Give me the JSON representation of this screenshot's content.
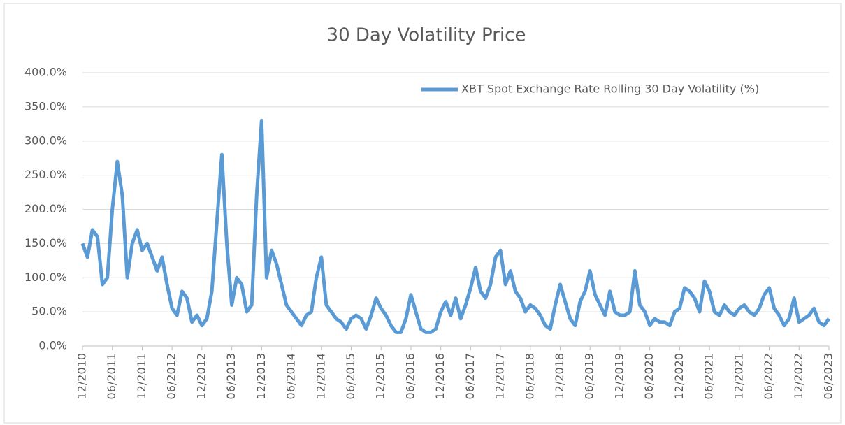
{
  "chart_data": {
    "type": "line",
    "title": "30 Day Volatility Price",
    "categories": [
      "12/2010",
      null,
      null,
      null,
      null,
      null,
      "06/2011",
      null,
      null,
      null,
      null,
      null,
      "12/2011",
      null,
      null,
      null,
      null,
      null,
      "06/2012",
      null,
      null,
      null,
      null,
      null,
      "12/2012",
      null,
      null,
      null,
      null,
      null,
      "06/2013",
      null,
      null,
      null,
      null,
      null,
      "12/2013",
      null,
      null,
      null,
      null,
      null,
      "06/2014",
      null,
      null,
      null,
      null,
      null,
      "12/2014",
      null,
      null,
      null,
      null,
      null,
      "06/2015",
      null,
      null,
      null,
      null,
      null,
      "12/2015",
      null,
      null,
      null,
      null,
      null,
      "06/2016",
      null,
      null,
      null,
      null,
      null,
      "12/2016",
      null,
      null,
      null,
      null,
      null,
      "06/2017",
      null,
      null,
      null,
      null,
      null,
      "12/2017",
      null,
      null,
      null,
      null,
      null,
      "06/2018",
      null,
      null,
      null,
      null,
      null,
      "12/2018",
      null,
      null,
      null,
      null,
      null,
      "06/2019",
      null,
      null,
      null,
      null,
      null,
      "12/2019",
      null,
      null,
      null,
      null,
      null,
      "06/2020",
      null,
      null,
      null,
      null,
      null,
      "12/2020",
      null,
      null,
      null,
      null,
      null,
      "06/2021",
      null,
      null,
      null,
      null,
      null,
      "12/2021",
      null,
      null,
      null,
      null,
      null,
      "06/2022",
      null,
      null,
      null,
      null,
      null,
      "12/2022",
      null,
      null,
      null,
      null,
      null,
      "06/2023"
    ],
    "series": [
      {
        "name": "XBT Spot Exchange Rate Rolling 30 Day Volatility (%)",
        "color": "#5b9bd5",
        "values": [
          150,
          130,
          170,
          160,
          90,
          100,
          200,
          270,
          220,
          100,
          150,
          170,
          140,
          150,
          130,
          110,
          130,
          90,
          55,
          45,
          80,
          70,
          35,
          45,
          30,
          40,
          80,
          180,
          280,
          150,
          60,
          100,
          90,
          50,
          60,
          220,
          330,
          100,
          140,
          120,
          90,
          60,
          50,
          40,
          30,
          45,
          50,
          100,
          130,
          60,
          50,
          40,
          35,
          25,
          40,
          45,
          40,
          25,
          45,
          70,
          55,
          45,
          30,
          20,
          20,
          40,
          75,
          50,
          25,
          20,
          20,
          25,
          50,
          65,
          45,
          70,
          40,
          60,
          85,
          115,
          80,
          70,
          90,
          130,
          140,
          90,
          110,
          80,
          70,
          50,
          60,
          55,
          45,
          30,
          25,
          60,
          90,
          65,
          40,
          30,
          65,
          80,
          110,
          75,
          60,
          45,
          80,
          50,
          45,
          45,
          50,
          110,
          60,
          50,
          30,
          40,
          35,
          35,
          30,
          50,
          55,
          85,
          80,
          70,
          50,
          95,
          80,
          50,
          45,
          60,
          50,
          45,
          55,
          60,
          50,
          45,
          55,
          75,
          85,
          55,
          45,
          30,
          40,
          70,
          35,
          40,
          45,
          55,
          35,
          30,
          40
        ]
      }
    ],
    "ylim": [
      0,
      400
    ],
    "yticks": [
      {
        "value": 0,
        "label": "0.0%"
      },
      {
        "value": 50,
        "label": "50.0%"
      },
      {
        "value": 100,
        "label": "100.0%"
      },
      {
        "value": 150,
        "label": "150.0%"
      },
      {
        "value": 200,
        "label": "200.0%"
      },
      {
        "value": 250,
        "label": "250.0%"
      },
      {
        "value": 300,
        "label": "300.0%"
      },
      {
        "value": 350,
        "label": "350.0%"
      },
      {
        "value": 400,
        "label": "400.0%"
      }
    ],
    "grid": true,
    "legend": "upper right"
  }
}
